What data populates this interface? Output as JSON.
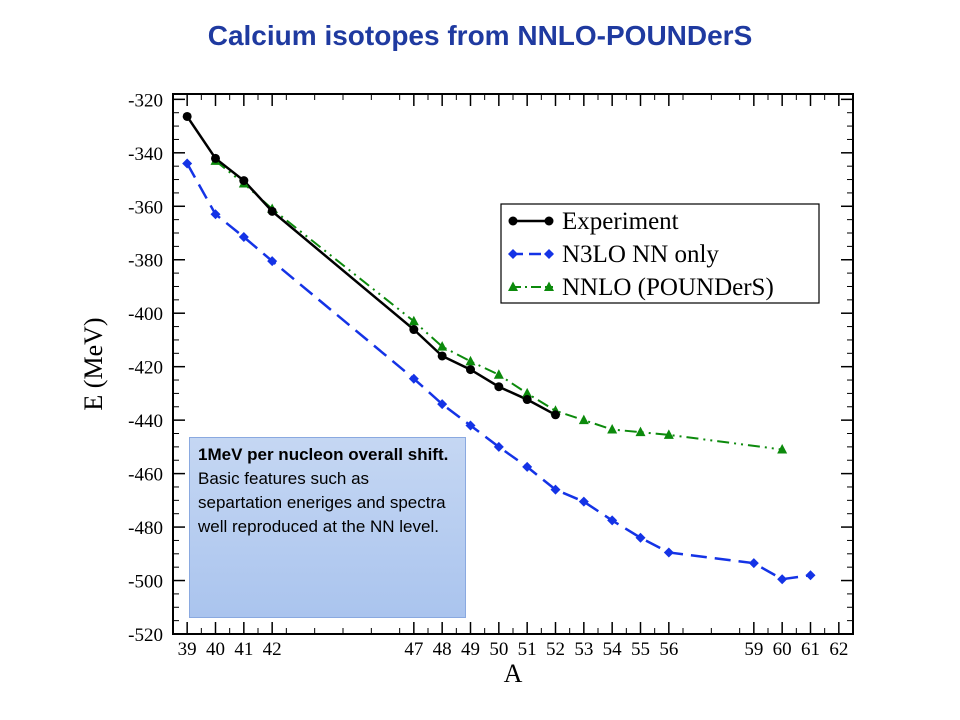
{
  "title": "Calcium isotopes from NNLO-POUNDerS",
  "note": {
    "bold": "1MeV per  nucleon overall shift.",
    "normal": "Basic features such as separtation eneriges and spectra well reproduced at the NN level."
  },
  "chart_data": {
    "type": "line",
    "title": "Calcium isotopes from NNLO-POUNDerS",
    "xlabel": "A",
    "ylabel": "E (MeV)",
    "xlim": [
      38.5,
      62.5
    ],
    "ylim": [
      -520,
      -318
    ],
    "xticks": [
      39,
      40,
      41,
      42,
      47,
      48,
      49,
      50,
      51,
      52,
      53,
      54,
      55,
      56,
      59,
      60,
      61,
      62
    ],
    "yticks": [
      -320,
      -340,
      -360,
      -380,
      -400,
      -420,
      -440,
      -460,
      -480,
      -500,
      -520
    ],
    "legend_position": "top-right",
    "series": [
      {
        "name": "Experiment",
        "color": "#000000",
        "marker": "circle",
        "dash": "solid",
        "x": [
          39,
          40,
          41,
          42,
          47,
          48,
          49,
          50,
          51,
          52
        ],
        "y": [
          -326.4,
          -342.1,
          -350.4,
          -361.9,
          -406.1,
          -416.0,
          -421.1,
          -427.5,
          -432.3,
          -438.0
        ]
      },
      {
        "name": "N3LO NN only",
        "color": "#1433e6",
        "marker": "diamond",
        "dash": "long-dash",
        "x": [
          39,
          40,
          41,
          42,
          47,
          48,
          49,
          50,
          51,
          52,
          53,
          54,
          55,
          56,
          59,
          60,
          61
        ],
        "y": [
          -344,
          -363,
          -371.5,
          -380.5,
          -424.5,
          -434,
          -442,
          -450,
          -457.5,
          -466,
          -470.5,
          -477.5,
          -484,
          -489.5,
          -493.5,
          -499.5,
          -498
        ]
      },
      {
        "name": "NNLO (POUNDerS)",
        "color": "#0c8a0c",
        "marker": "triangle",
        "dash": "dash-dot-dot",
        "x": [
          40,
          41,
          42,
          47,
          48,
          49,
          50,
          51,
          52,
          53,
          54,
          55,
          56,
          60
        ],
        "y": [
          -343,
          -351.5,
          -361,
          -403,
          -412.5,
          -418,
          -423,
          -430,
          -436.5,
          -440,
          -443.5,
          -444.5,
          -445.5,
          -451
        ]
      }
    ]
  }
}
